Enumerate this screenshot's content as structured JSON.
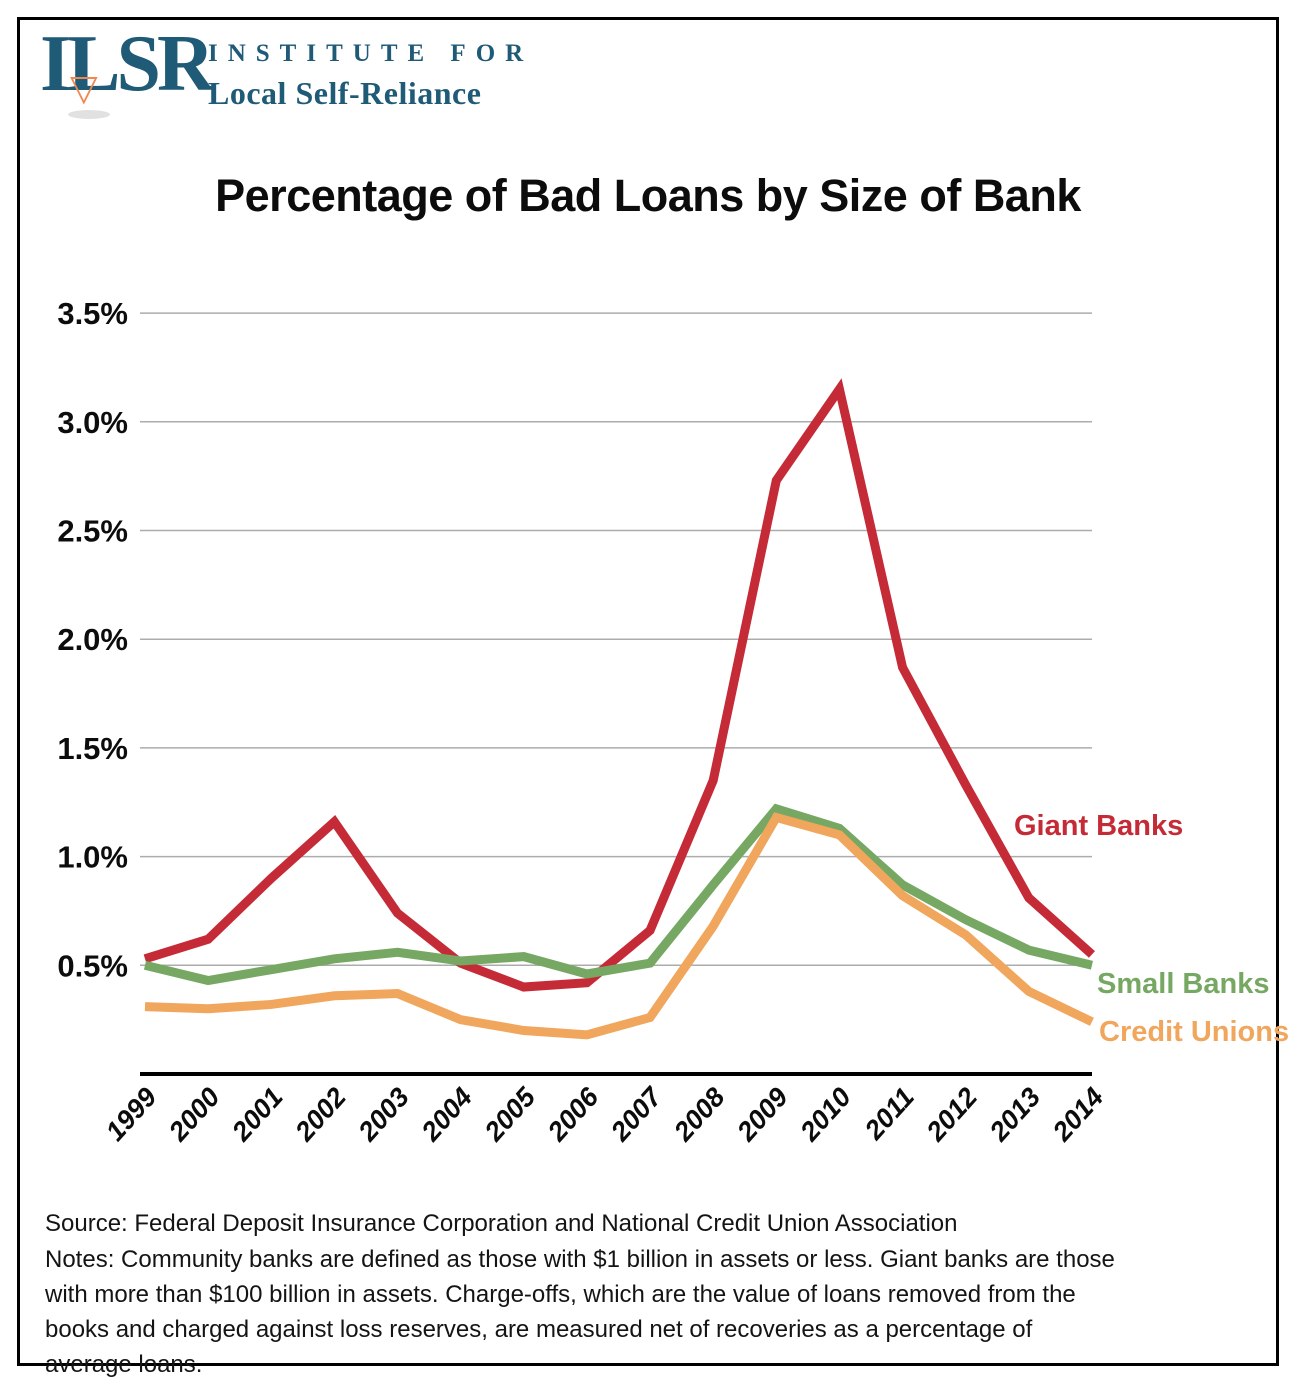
{
  "brand": {
    "logo_acronym": "ILSR",
    "logo_triangle_icon": "▽",
    "org_line1": "INSTITUTE FOR",
    "org_line2": "Local Self-Reliance",
    "navy_color": "#1F5A77",
    "orange_color": "#F0874F"
  },
  "chart_data": {
    "type": "line",
    "title": "Percentage of Bad Loans by Size of Bank",
    "x": [
      1999,
      2000,
      2001,
      2002,
      2003,
      2004,
      2005,
      2006,
      2007,
      2008,
      2009,
      2010,
      2011,
      2012,
      2013,
      2014
    ],
    "xlabel": "",
    "ylabel": "",
    "ylim": [
      0,
      3.75
    ],
    "yticks": [
      "0.5%",
      "1.0%",
      "1.5%",
      "2.0%",
      "2.5%",
      "3.0%",
      "3.5%"
    ],
    "grid": true,
    "gridline_color": "#ACACAC",
    "axis_color": "#000000",
    "legend_position": "inline-right",
    "series": [
      {
        "name": "Giant Banks",
        "color": "#C52B37",
        "values": [
          0.53,
          0.62,
          0.9,
          1.16,
          0.74,
          0.51,
          0.4,
          0.42,
          0.66,
          1.35,
          2.73,
          3.15,
          1.87,
          1.33,
          0.81,
          0.55
        ]
      },
      {
        "name": "Small Banks",
        "color": "#76A863",
        "values": [
          0.5,
          0.43,
          0.48,
          0.53,
          0.56,
          0.52,
          0.54,
          0.46,
          0.51,
          0.87,
          1.22,
          1.13,
          0.87,
          0.71,
          0.57,
          0.5
        ]
      },
      {
        "name": "Credit Unions",
        "color": "#F0A65D",
        "values": [
          0.31,
          0.3,
          0.32,
          0.36,
          0.37,
          0.25,
          0.2,
          0.18,
          0.26,
          0.68,
          1.18,
          1.1,
          0.82,
          0.64,
          0.38,
          0.24
        ]
      }
    ]
  },
  "footer": {
    "source": "Source: Federal Deposit Insurance Corporation and National Credit Union Association",
    "notes": "Notes:  Community banks are defined as those with $1 billion in assets or less. Giant banks are those with more than $100 billion in assets.  Charge-offs, which are the value of loans removed from the books and charged against loss reserves, are measured net of recoveries as a percentage of average loans."
  }
}
